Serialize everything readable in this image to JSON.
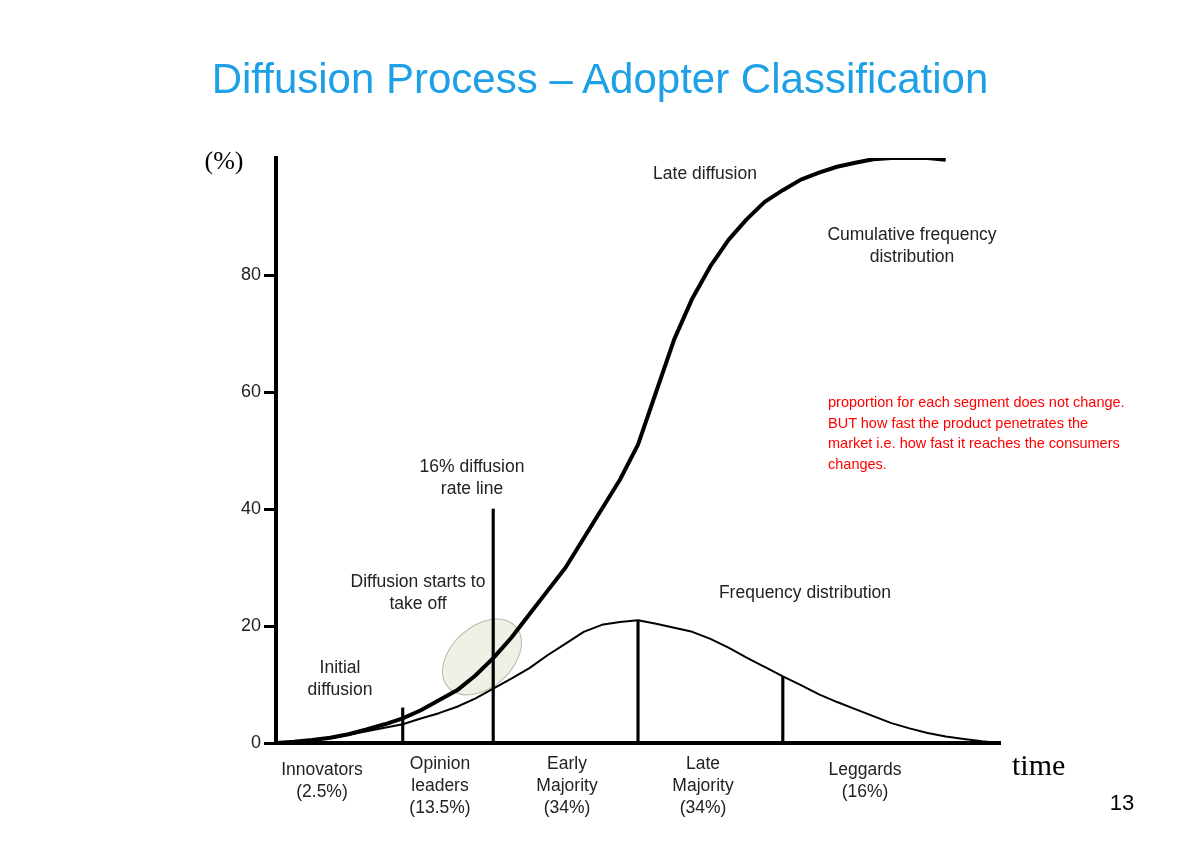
{
  "chart_data": {
    "type": "line",
    "title": "Diffusion Process – Adopter Classification",
    "xlabel": "time",
    "ylabel": "(%)",
    "categories": [
      null,
      null,
      null,
      null,
      null,
      null,
      null,
      null,
      null,
      null,
      null,
      null,
      null,
      null,
      null,
      null,
      null,
      null,
      null,
      null,
      null,
      null,
      null,
      null,
      null,
      null,
      null,
      null,
      null,
      null,
      null,
      null,
      null,
      null,
      null,
      null,
      null,
      null,
      null,
      null,
      null
    ],
    "ylim": [
      0,
      100
    ],
    "yticks": [
      0,
      20,
      40,
      60,
      80
    ],
    "tick_labels": "y",
    "marker": "none",
    "series": [
      {
        "color": "#000000",
        "values": [
          0,
          0.2,
          0.5,
          0.9,
          1.5,
          2.3,
          3.2,
          4.2,
          5.6,
          7.3,
          9,
          11.5,
          14.5,
          18,
          22,
          26,
          30,
          35,
          40,
          45,
          51,
          60,
          69,
          76,
          81.5,
          86,
          89.5,
          92.5,
          94.5,
          96.3,
          97.5,
          98.5,
          99.2,
          99.8,
          100,
          100,
          100,
          99.7,
          null,
          null,
          null
        ]
      },
      {
        "color": "#000000",
        "values": [
          0,
          0.2,
          0.5,
          0.9,
          1.4,
          2,
          2.6,
          3.2,
          4.2,
          5.1,
          6.2,
          7.6,
          9.3,
          11,
          12.8,
          15,
          17,
          19,
          20.2,
          20.7,
          21,
          20.4,
          19.7,
          19,
          17.8,
          16.3,
          14.6,
          13,
          11.4,
          9.9,
          8.3,
          7,
          5.8,
          4.6,
          3.4,
          2.5,
          1.7,
          1.1,
          0.7,
          0.3,
          0
        ]
      },
      {
        "type": "bar",
        "color": "#000000",
        "values": [
          null,
          null,
          null,
          null,
          null,
          null,
          null,
          6,
          null,
          null,
          null,
          null,
          40,
          null,
          null,
          null,
          null,
          null,
          null,
          null,
          21,
          null,
          null,
          null,
          null,
          null,
          null,
          null,
          11.4,
          null,
          null,
          null,
          null,
          null,
          null,
          null,
          null,
          null,
          null,
          null,
          null
        ]
      }
    ],
    "annotations": [
      "Late diffusion",
      "Cumulative frequency\ndistribution",
      "Frequency distribution",
      "Diffusion starts to\ntake off",
      "Initial\ndiffusion",
      "16% diffusion\nrate line",
      "Innovators\n(2.5%)",
      "Opinion\nleaders\n(13.5%)",
      "Early\nMajority\n(34%)",
      "Late\nMajority\n(34%)",
      "Leggards\n(16%)",
      "proportion for each segment does not change. BUT how fast the product penetrates the market i.e. how fast it reaches the consumers changes.",
      "13"
    ]
  }
}
